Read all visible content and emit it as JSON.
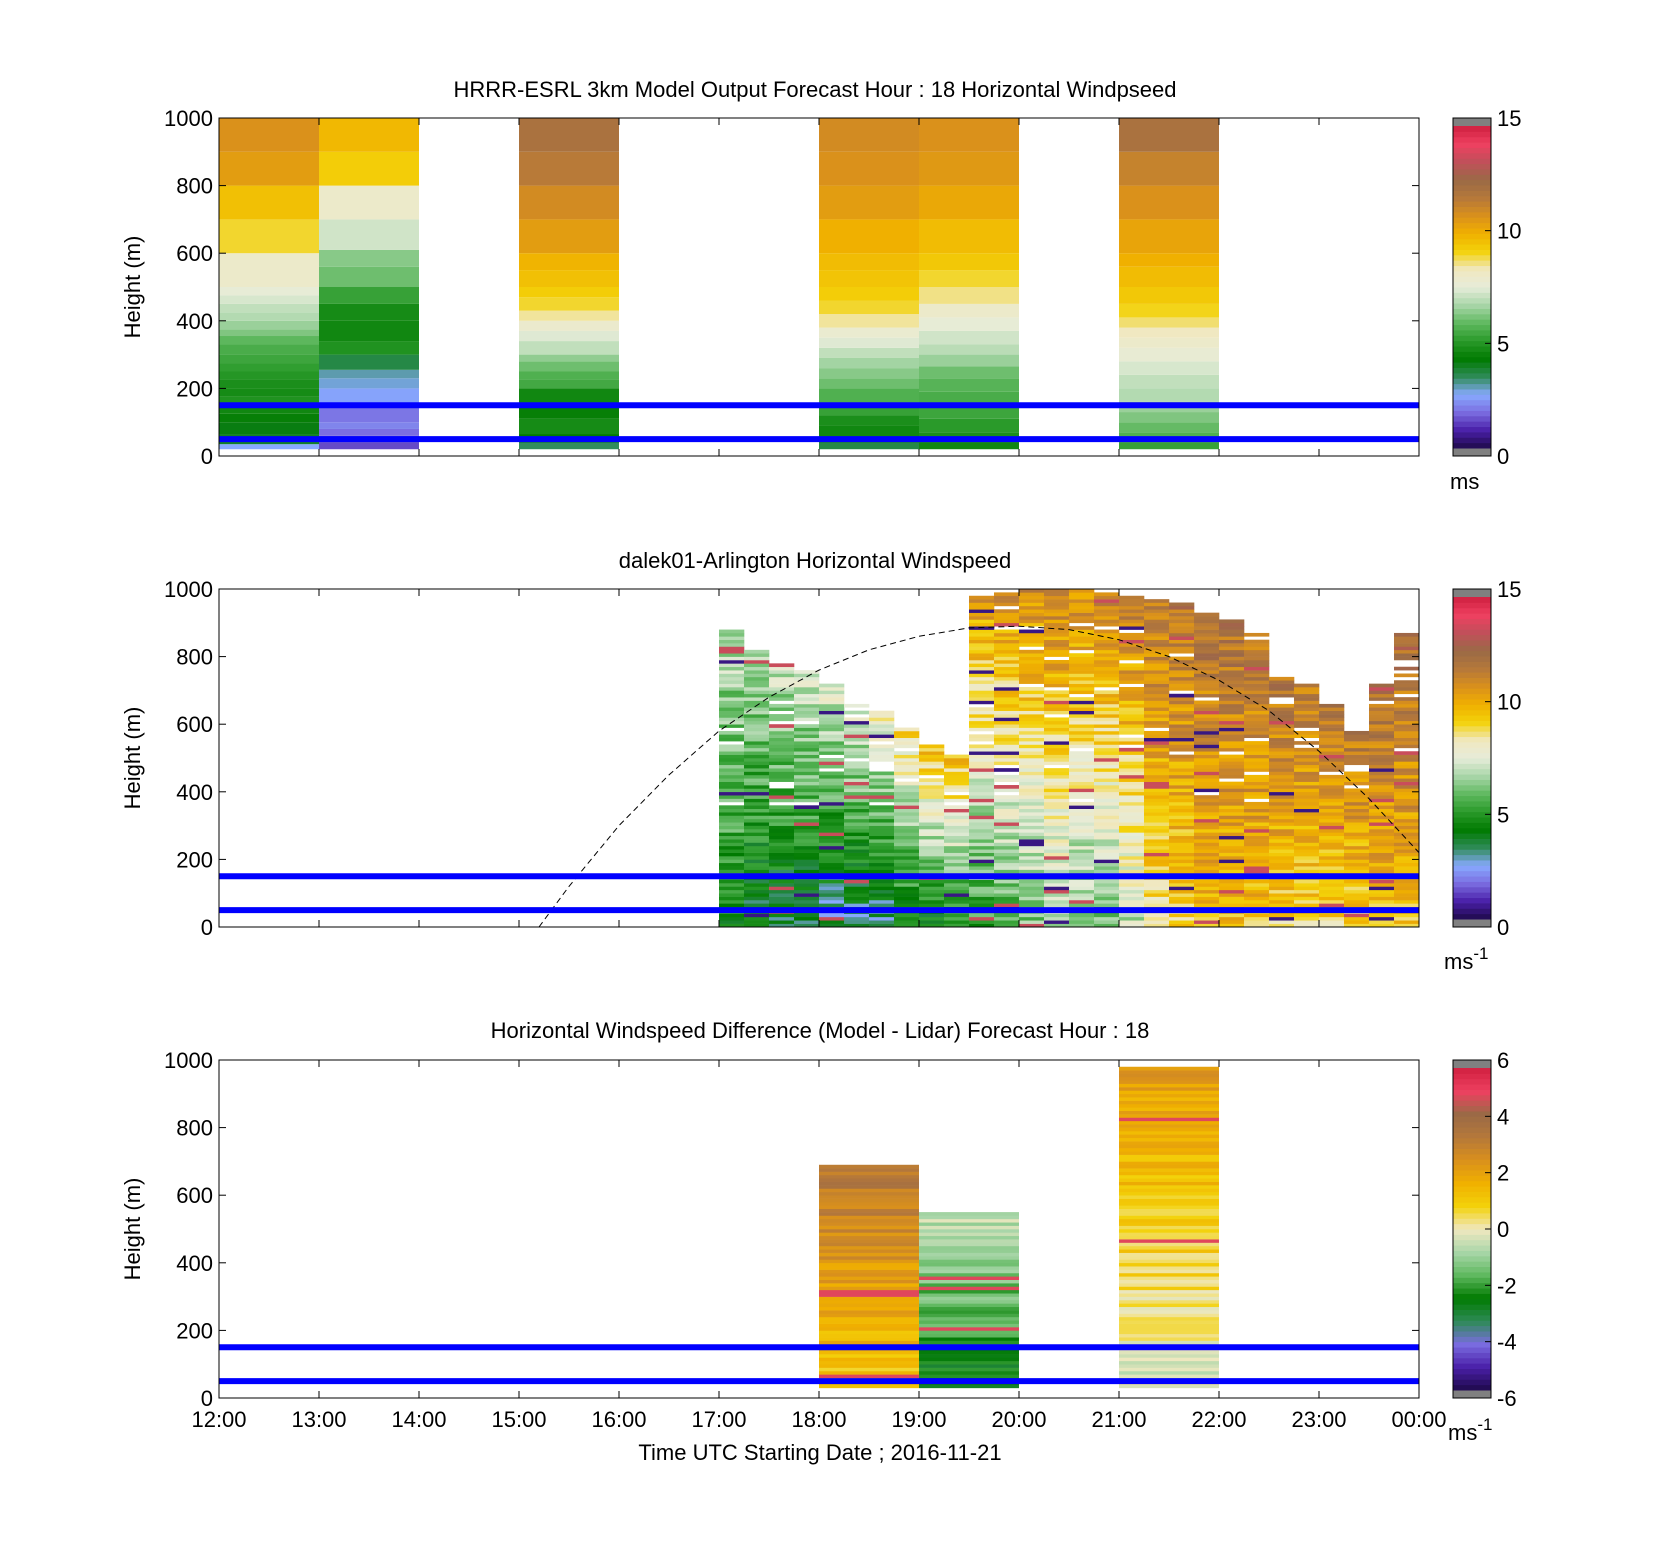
{
  "colors": {
    "guide_line": "#0000ff",
    "sun_curve": "#000000",
    "speed_scale": [
      "#1e0a4a",
      "#4a1fa8",
      "#7a6ce0",
      "#88aaff",
      "#2e8b57",
      "#007a00",
      "#2a9a2a",
      "#5fb85f",
      "#a9d6a9",
      "#e6ecd9",
      "#f0e8c0",
      "#f3d20a",
      "#f0b000",
      "#d9901c",
      "#b5783a",
      "#9a6a46",
      "#c0505a",
      "#ee4060",
      "#d02040"
    ],
    "diff_scale": [
      "#1e0a4a",
      "#4a1fa8",
      "#7a6ce0",
      "#2e8b57",
      "#007a00",
      "#5fb85f",
      "#a9d6a9",
      "#f0e8c0",
      "#f3d20a",
      "#f0b000",
      "#d9901c",
      "#b5783a",
      "#9a6a46",
      "#ee4060",
      "#d02040"
    ]
  },
  "x_axis": {
    "tick_labels": [
      "12:00",
      "13:00",
      "14:00",
      "15:00",
      "16:00",
      "17:00",
      "18:00",
      "19:00",
      "20:00",
      "21:00",
      "22:00",
      "23:00",
      "00:00"
    ],
    "label": "Time UTC  Starting Date ; 2016-11-21"
  },
  "panels": [
    {
      "title": "HRRR-ESRL 3km Model Output   Forecast Hour : 18 Horizontal Windpseed",
      "ylabel": "Height (m)",
      "yticks": [
        "0",
        "200",
        "400",
        "600",
        "800",
        "1000"
      ],
      "colorbar": {
        "ticks": [
          "0",
          "5",
          "10",
          "15"
        ],
        "unit": "ms"
      }
    },
    {
      "title": "dalek01-Arlington  Horizontal Windspeed",
      "ylabel": "Height (m)",
      "yticks": [
        "0",
        "200",
        "400",
        "600",
        "800",
        "1000"
      ],
      "colorbar": {
        "ticks": [
          "0",
          "5",
          "10",
          "15"
        ],
        "unit": "ms",
        "unit_sup": "-1"
      }
    },
    {
      "title": "Horizontal Windspeed Difference (Model - Lidar) Forecast Hour : 18",
      "ylabel": "Height (m)",
      "yticks": [
        "0",
        "200",
        "400",
        "600",
        "800",
        "1000"
      ],
      "colorbar": {
        "ticks": [
          "-6",
          "-4",
          "-2",
          "0",
          "2",
          "4",
          "6"
        ],
        "unit": "ms",
        "unit_sup": "-1"
      }
    }
  ],
  "chart_data": [
    {
      "type": "heatmap",
      "title": "HRRR-ESRL 3km Model Output   Forecast Hour : 18 Horizontal Windpseed",
      "xlabel": "",
      "ylabel": "Height (m)",
      "xlim": [
        12,
        24
      ],
      "ylim": [
        0,
        1000
      ],
      "clim": [
        0,
        15
      ],
      "unit": "ms",
      "horizontal_lines_m": [
        50,
        150
      ],
      "columns": [
        {
          "t0": 12,
          "t1": 13,
          "cells": [
            [
              20,
              35,
              2.5
            ],
            [
              35,
              65,
              3.8
            ],
            [
              65,
              100,
              4.0
            ],
            [
              100,
              125,
              4.3
            ],
            [
              125,
              150,
              4.5
            ],
            [
              150,
              175,
              4.8
            ],
            [
              175,
              200,
              4.6
            ],
            [
              200,
              225,
              4.7
            ],
            [
              225,
              250,
              4.9
            ],
            [
              250,
              275,
              5.1
            ],
            [
              275,
              300,
              5.3
            ],
            [
              300,
              330,
              5.5
            ],
            [
              330,
              355,
              5.8
            ],
            [
              355,
              375,
              6.2
            ],
            [
              375,
              400,
              6.5
            ],
            [
              400,
              425,
              6.8
            ],
            [
              425,
              450,
              7.0
            ],
            [
              450,
              475,
              7.3
            ],
            [
              475,
              500,
              7.6
            ],
            [
              500,
              600,
              8.0
            ],
            [
              600,
              700,
              9.0
            ],
            [
              700,
              800,
              9.6
            ],
            [
              800,
              900,
              10.5
            ],
            [
              900,
              1000,
              10.8
            ]
          ]
        },
        {
          "t0": 13,
          "t1": 14,
          "cells": [
            [
              20,
              40,
              1.3
            ],
            [
              40,
              60,
              1.5
            ],
            [
              60,
              80,
              1.7
            ],
            [
              80,
              100,
              2.0
            ],
            [
              100,
              150,
              1.8
            ],
            [
              150,
              200,
              2.4
            ],
            [
              200,
              230,
              2.7
            ],
            [
              230,
              255,
              2.9
            ],
            [
              255,
              300,
              3.5
            ],
            [
              300,
              340,
              4.8
            ],
            [
              340,
              400,
              4.5
            ],
            [
              400,
              450,
              4.6
            ],
            [
              450,
              500,
              5.2
            ],
            [
              500,
              560,
              6.0
            ],
            [
              560,
              610,
              6.3
            ],
            [
              610,
              700,
              7.2
            ],
            [
              700,
              800,
              8.0
            ],
            [
              800,
              900,
              9.3
            ],
            [
              900,
              1000,
              9.8
            ]
          ]
        },
        {
          "t0": 15,
          "t1": 16,
          "cells": [
            [
              20,
              40,
              3.3
            ],
            [
              40,
              65,
              4.2
            ],
            [
              65,
              110,
              4.6
            ],
            [
              110,
              150,
              4.3
            ],
            [
              150,
              200,
              4.5
            ],
            [
              200,
              225,
              5.4
            ],
            [
              225,
              250,
              5.6
            ],
            [
              250,
              280,
              6.0
            ],
            [
              280,
              300,
              6.4
            ],
            [
              300,
              340,
              7.0
            ],
            [
              340,
              370,
              7.4
            ],
            [
              370,
              400,
              7.9
            ],
            [
              400,
              430,
              8.5
            ],
            [
              430,
              470,
              9.0
            ],
            [
              470,
              500,
              9.3
            ],
            [
              500,
              550,
              9.6
            ],
            [
              550,
              600,
              9.9
            ],
            [
              600,
              700,
              10.5
            ],
            [
              700,
              800,
              11.0
            ],
            [
              800,
              900,
              11.6
            ],
            [
              900,
              1000,
              12.0
            ]
          ]
        },
        {
          "t0": 18,
          "t1": 19,
          "cells": [
            [
              20,
              40,
              3.5
            ],
            [
              40,
              90,
              4.5
            ],
            [
              90,
              120,
              4.7
            ],
            [
              120,
              150,
              5.2
            ],
            [
              150,
              200,
              5.6
            ],
            [
              200,
              230,
              6.0
            ],
            [
              230,
              260,
              6.3
            ],
            [
              260,
              290,
              6.6
            ],
            [
              290,
              320,
              7.0
            ],
            [
              320,
              350,
              7.4
            ],
            [
              350,
              380,
              7.8
            ],
            [
              380,
              420,
              8.5
            ],
            [
              420,
              460,
              9.0
            ],
            [
              460,
              500,
              9.3
            ],
            [
              500,
              550,
              9.5
            ],
            [
              550,
              600,
              9.7
            ],
            [
              600,
              700,
              10.0
            ],
            [
              700,
              800,
              10.5
            ],
            [
              800,
              900,
              10.8
            ],
            [
              900,
              1000,
              11.0
            ]
          ]
        },
        {
          "t0": 19,
          "t1": 20,
          "cells": [
            [
              20,
              40,
              4.5
            ],
            [
              40,
              70,
              4.7
            ],
            [
              70,
              110,
              5.0
            ],
            [
              110,
              150,
              5.3
            ],
            [
              150,
              190,
              5.5
            ],
            [
              190,
              230,
              5.7
            ],
            [
              230,
              265,
              6.0
            ],
            [
              265,
              300,
              6.5
            ],
            [
              300,
              330,
              6.9
            ],
            [
              330,
              370,
              7.2
            ],
            [
              370,
              410,
              7.6
            ],
            [
              410,
              450,
              8.0
            ],
            [
              450,
              500,
              8.6
            ],
            [
              500,
              550,
              9.0
            ],
            [
              550,
              600,
              9.4
            ],
            [
              600,
              700,
              9.7
            ],
            [
              700,
              800,
              10.2
            ],
            [
              800,
              900,
              10.6
            ],
            [
              900,
              1000,
              10.8
            ]
          ]
        },
        {
          "t0": 21,
          "t1": 22,
          "cells": [
            [
              20,
              40,
              5.2
            ],
            [
              40,
              70,
              5.6
            ],
            [
              70,
              100,
              5.9
            ],
            [
              100,
              130,
              6.2
            ],
            [
              130,
              160,
              6.5
            ],
            [
              160,
              200,
              6.8
            ],
            [
              200,
              240,
              7.0
            ],
            [
              240,
              280,
              7.3
            ],
            [
              280,
              320,
              7.7
            ],
            [
              320,
              350,
              8.0
            ],
            [
              350,
              380,
              8.3
            ],
            [
              380,
              410,
              8.7
            ],
            [
              410,
              450,
              9.1
            ],
            [
              450,
              500,
              9.4
            ],
            [
              500,
              560,
              9.7
            ],
            [
              560,
              600,
              10.0
            ],
            [
              600,
              700,
              10.3
            ],
            [
              700,
              800,
              10.8
            ],
            [
              800,
              900,
              11.3
            ],
            [
              900,
              1000,
              12.0
            ]
          ]
        }
      ]
    },
    {
      "type": "heatmap",
      "title": "dalek01-Arlington  Horizontal Windspeed",
      "xlabel": "",
      "ylabel": "Height (m)",
      "xlim": [
        12,
        24
      ],
      "ylim": [
        0,
        1000
      ],
      "clim": [
        0,
        15
      ],
      "unit": "ms-1",
      "horizontal_lines_m": [
        50,
        150
      ],
      "column_width_h": 0.25,
      "columns": [
        {
          "t": 17.125,
          "top": 890,
          "low": 4.5,
          "high": 7.0
        },
        {
          "t": 17.375,
          "top": 820,
          "low": 3.8,
          "high": 6.8
        },
        {
          "t": 17.625,
          "top": 780,
          "low": 3.5,
          "high": 7.2
        },
        {
          "t": 17.875,
          "top": 760,
          "low": 3.5,
          "high": 7.4
        },
        {
          "t": 18.125,
          "top": 720,
          "low": 3.0,
          "high": 7.6
        },
        {
          "t": 18.375,
          "top": 660,
          "low": 3.2,
          "high": 7.8
        },
        {
          "t": 18.625,
          "top": 640,
          "low": 3.0,
          "high": 8.2
        },
        {
          "t": 18.875,
          "top": 590,
          "low": 4.0,
          "high": 9.0
        },
        {
          "t": 19.125,
          "top": 540,
          "low": 4.2,
          "high": 9.6
        },
        {
          "t": 19.375,
          "top": 520,
          "low": 4.5,
          "high": 9.9
        },
        {
          "t": 19.625,
          "top": 980,
          "low": 5.0,
          "high": 10.5
        },
        {
          "t": 19.875,
          "top": 990,
          "low": 5.5,
          "high": 10.8
        },
        {
          "t": 20.125,
          "top": 1000,
          "low": 6.0,
          "high": 11.0
        },
        {
          "t": 20.375,
          "top": 1000,
          "low": 6.5,
          "high": 11.2
        },
        {
          "t": 20.625,
          "top": 1000,
          "low": 6.0,
          "high": 11.0
        },
        {
          "t": 20.875,
          "top": 990,
          "low": 6.0,
          "high": 11.2
        },
        {
          "t": 21.125,
          "top": 980,
          "low": 7.0,
          "high": 11.4
        },
        {
          "t": 21.375,
          "top": 970,
          "low": 8.5,
          "high": 11.6
        },
        {
          "t": 21.625,
          "top": 960,
          "low": 9.0,
          "high": 11.8
        },
        {
          "t": 21.875,
          "top": 930,
          "low": 9.5,
          "high": 12.0
        },
        {
          "t": 22.125,
          "top": 910,
          "low": 9.5,
          "high": 12.0
        },
        {
          "t": 22.375,
          "top": 870,
          "low": 9.5,
          "high": 11.8
        },
        {
          "t": 22.625,
          "top": 740,
          "low": 9.0,
          "high": 11.8
        },
        {
          "t": 22.875,
          "top": 720,
          "low": 9.0,
          "high": 11.6
        },
        {
          "t": 23.125,
          "top": 660,
          "low": 9.0,
          "high": 11.6
        },
        {
          "t": 23.375,
          "top": 580,
          "low": 9.0,
          "high": 11.6
        },
        {
          "t": 23.625,
          "top": 720,
          "low": 9.5,
          "high": 12.0
        },
        {
          "t": 23.875,
          "top": 870,
          "low": 9.5,
          "high": 12.2
        }
      ],
      "sun_elevation_curve": {
        "x": [
          15.2,
          15.5,
          16,
          16.5,
          17,
          17.5,
          18,
          18.5,
          19,
          19.5,
          20,
          20.5,
          21,
          21.5,
          22,
          22.5,
          23,
          23.5,
          24
        ],
        "y": [
          0,
          120,
          300,
          450,
          580,
          680,
          760,
          820,
          860,
          885,
          890,
          880,
          850,
          800,
          730,
          640,
          520,
          380,
          220
        ]
      }
    },
    {
      "type": "heatmap",
      "title": "Horizontal Windspeed Difference (Model - Lidar) Forecast Hour : 18",
      "xlabel": "Time UTC  Starting Date ; 2016-11-21",
      "ylabel": "Height (m)",
      "xlim": [
        12,
        24
      ],
      "ylim": [
        0,
        1000
      ],
      "clim": [
        -6,
        6
      ],
      "unit": "ms-1",
      "horizontal_lines_m": [
        50,
        150
      ],
      "columns": [
        {
          "t0": 18,
          "t1": 19,
          "bottom": 30,
          "top": 690,
          "low": 1.0,
          "high": 3.5
        },
        {
          "t0": 19,
          "t1": 20,
          "bottom": 30,
          "top": 550,
          "low": -2.8,
          "high": -0.5
        },
        {
          "t0": 21,
          "t1": 22,
          "bottom": 30,
          "top": 980,
          "low": -0.3,
          "high": 2.3
        }
      ]
    }
  ]
}
